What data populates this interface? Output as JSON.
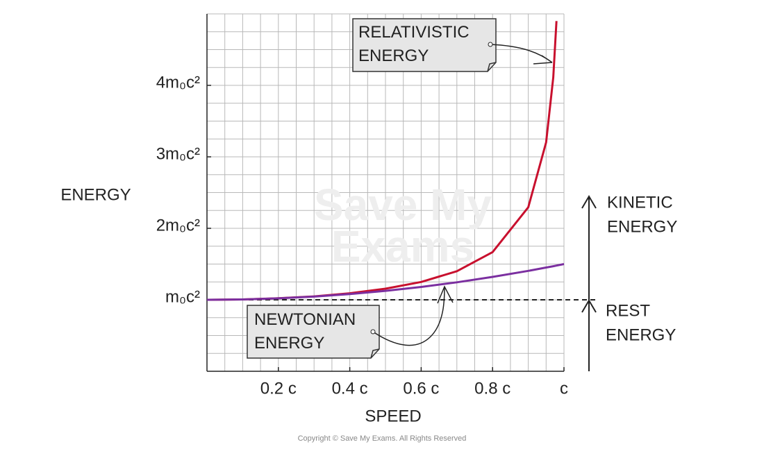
{
  "chart_data": {
    "type": "line",
    "x_label": "SPEED",
    "y_label": "ENERGY",
    "x": [
      0,
      0.1,
      0.2,
      0.3,
      0.4,
      0.5,
      0.6,
      0.7,
      0.8,
      0.9,
      0.95,
      0.97,
      0.979,
      1
    ],
    "series": [
      {
        "name": "RELATIVISTIC ENERGY",
        "color": "#c8102e",
        "values": [
          1,
          1.005,
          1.021,
          1.048,
          1.091,
          1.155,
          1.25,
          1.4,
          1.667,
          2.294,
          3.203,
          4.113,
          4.9,
          null
        ]
      },
      {
        "name": "NEWTONIAN ENERGY",
        "color": "#7b2fa0",
        "values": [
          1,
          1.005,
          1.02,
          1.045,
          1.08,
          1.125,
          1.18,
          1.245,
          1.32,
          1.405,
          1.451,
          1.47,
          1.479,
          1.5
        ]
      }
    ],
    "xlim": [
      0,
      1
    ],
    "ylim": [
      0,
      5
    ],
    "xticks": [
      {
        "value": 0.2,
        "label": "0.2 c"
      },
      {
        "value": 0.4,
        "label": "0.4 c"
      },
      {
        "value": 0.6,
        "label": "0.6 c"
      },
      {
        "value": 0.8,
        "label": "0.8 c"
      },
      {
        "value": 1,
        "label": "c"
      }
    ],
    "yticks": [
      {
        "value": 1,
        "label": "m₀c²"
      },
      {
        "value": 2,
        "label": "2m₀c²"
      },
      {
        "value": 3,
        "label": "3m₀c²"
      },
      {
        "value": 4,
        "label": "4m₀c²"
      }
    ],
    "grid": true,
    "grid_step_x": 0.05,
    "grid_step_y": 0.25,
    "rest_line": 1,
    "side_labels": {
      "kinetic": [
        "KINETIC",
        "ENERGY"
      ],
      "rest": [
        "REST",
        "ENERGY"
      ]
    },
    "watermark": [
      "Save My",
      "Exams"
    ],
    "copyright": "Copyright © Save My Exams. All Rights Reserved"
  }
}
